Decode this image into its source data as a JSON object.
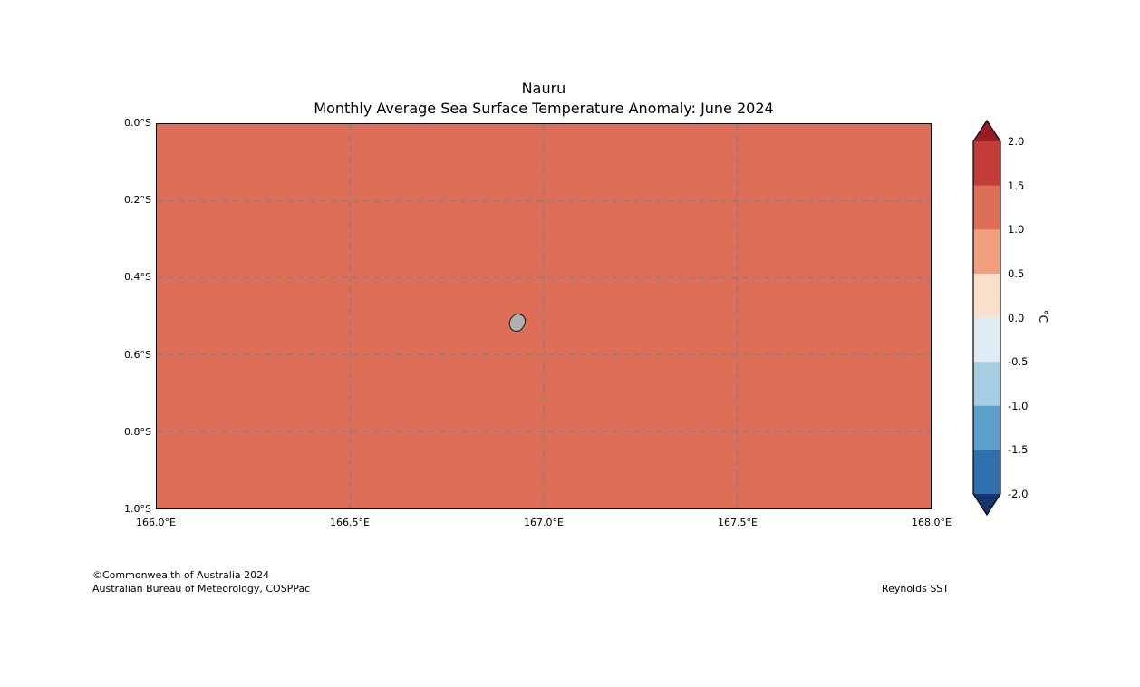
{
  "title": {
    "line1": "Nauru",
    "line2": "Monthly Average Sea Surface Temperature Anomaly: June 2024"
  },
  "axes": {
    "x_ticks": [
      "166.0°E",
      "166.5°E",
      "167.0°E",
      "167.5°E",
      "168.0°E"
    ],
    "y_ticks": [
      "0.0°S",
      "0.2°S",
      "0.4°S",
      "0.6°S",
      "0.8°S",
      "1.0°S"
    ]
  },
  "map": {
    "background_color": "#dd6e58",
    "island_fill": "#b0b0b0",
    "island_outline": "#2a2a2a",
    "grid_color": "#808080"
  },
  "colorbar": {
    "unit_label": "°C",
    "tick_labels": [
      "2.0",
      "1.5",
      "1.0",
      "0.5",
      "0.0",
      "-0.5",
      "-1.0",
      "-1.5",
      "-2.0"
    ],
    "segment_colors": [
      "#c43c38",
      "#dd6e58",
      "#f0a07c",
      "#fae0cb",
      "#e0ecf3",
      "#a6cee2",
      "#5b9fca",
      "#2e6fad"
    ],
    "over_color": "#981b23",
    "under_color": "#16356d"
  },
  "footer": {
    "line1": "©Commonwealth of Australia 2024",
    "line2": "Australian Bureau of Meteorology, COSPPac",
    "source": "Reynolds SST"
  },
  "chart_data": {
    "type": "heatmap",
    "title": "Nauru",
    "subtitle": "Monthly Average Sea Surface Temperature Anomaly: June 2024",
    "x_range": [
      166.0,
      168.0
    ],
    "x_unit": "°E",
    "x_tick_values": [
      166.0,
      166.5,
      167.0,
      167.5,
      168.0
    ],
    "y_range": [
      0.0,
      1.0
    ],
    "y_unit": "°S",
    "y_tick_values": [
      0.0,
      0.2,
      0.4,
      0.6,
      0.8,
      1.0
    ],
    "value_unit": "°C",
    "value_field": "sea_surface_temperature_anomaly",
    "region_uniform_value_band": [
      1.0,
      1.5
    ],
    "colorbar": {
      "min": -2.0,
      "max": 2.0,
      "step": 0.5,
      "extend": "both",
      "position": "right"
    },
    "island": {
      "name": "Nauru",
      "approx_lon_e": 166.92,
      "approx_lat_s": 0.52
    },
    "grid": "dashed"
  }
}
